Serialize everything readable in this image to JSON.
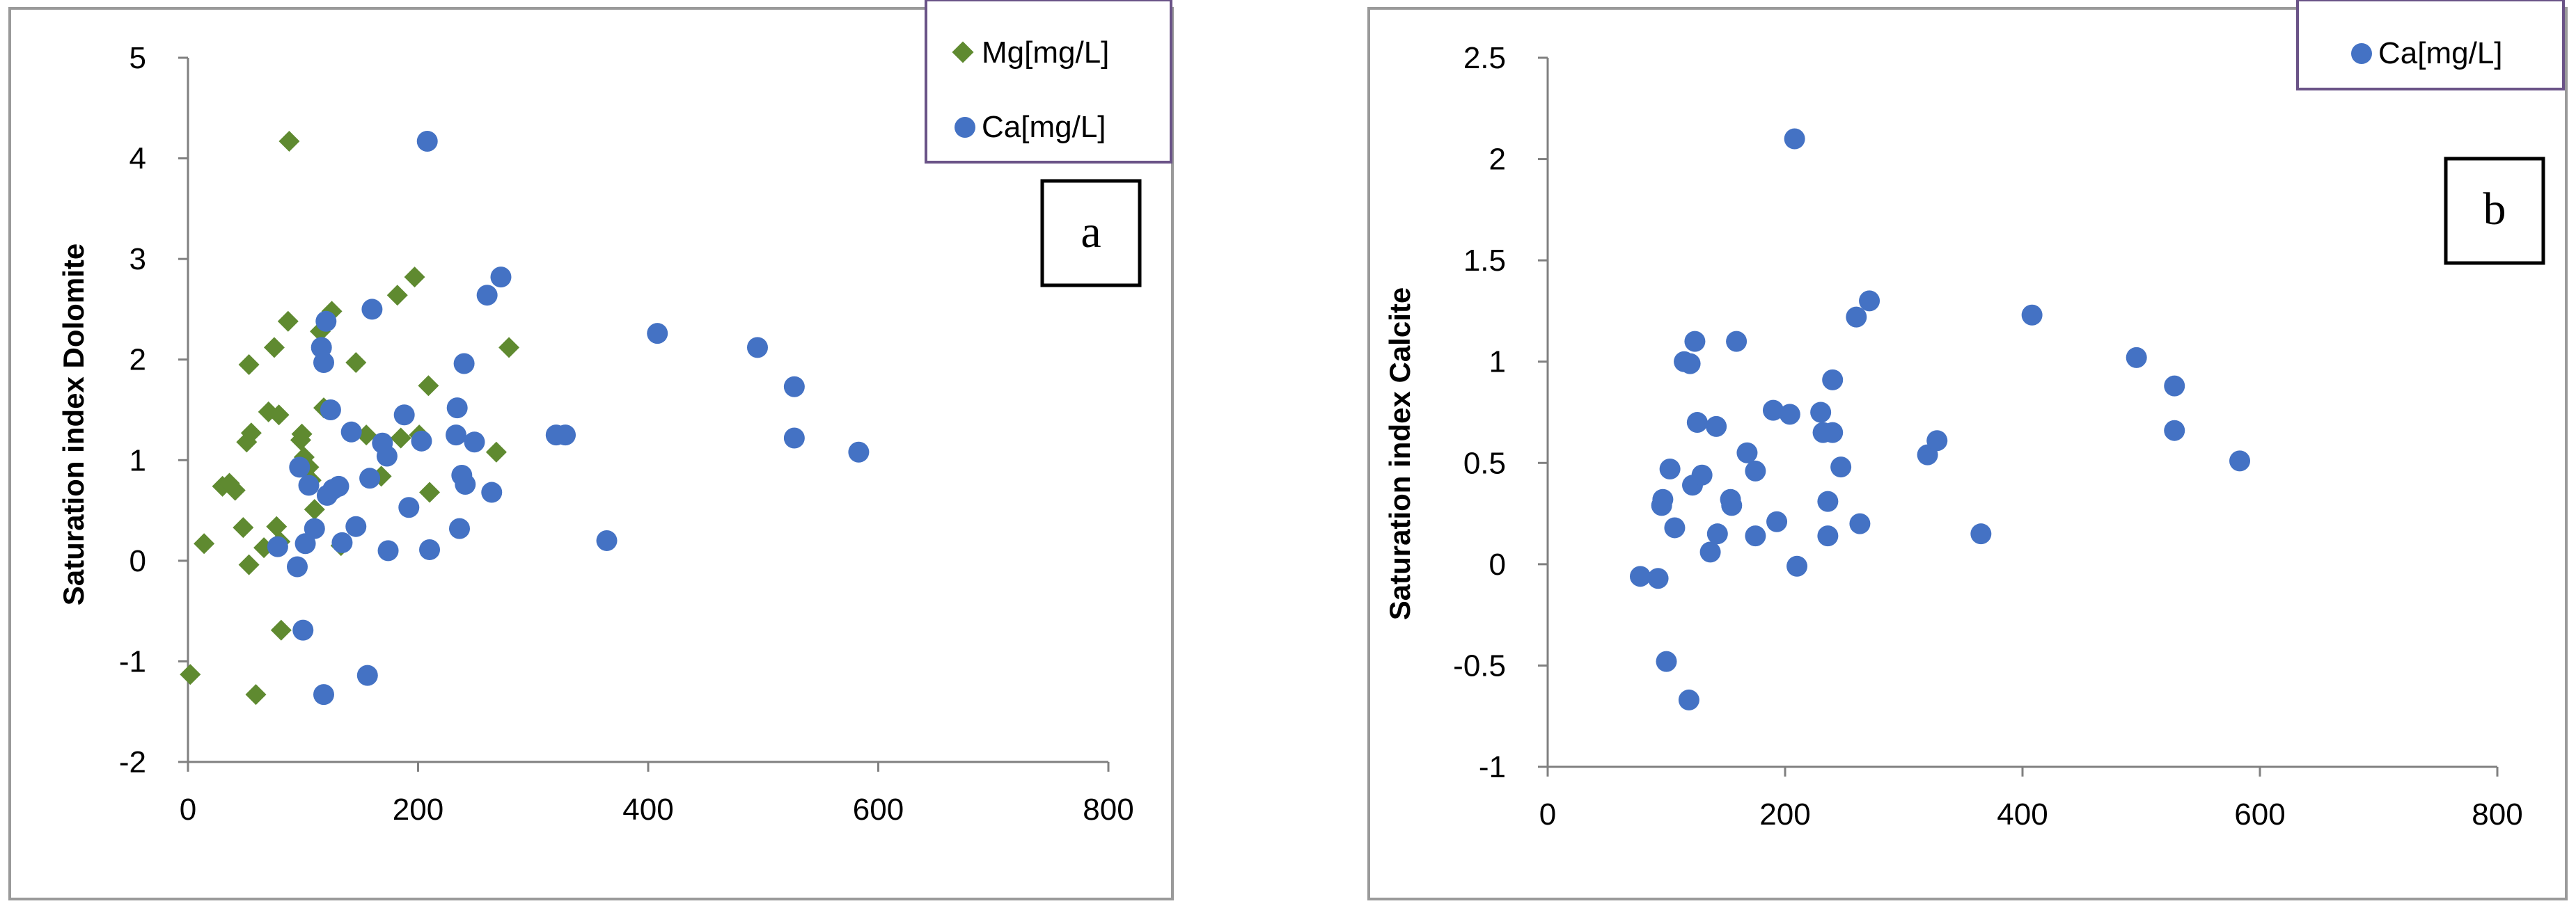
{
  "colors": {
    "mg": "#5f8a30",
    "ca": "#4472c4",
    "legend_border": "#6a5387",
    "frame": "#9a9a9a",
    "axis": "#808080"
  },
  "chart_data": [
    {
      "type": "scatter",
      "panel_label": "a",
      "title": "",
      "xlabel": "",
      "ylabel": "Saturation index Dolomite",
      "xlim": [
        0,
        800
      ],
      "ylim": [
        -2,
        5
      ],
      "xticks": [
        "0",
        "200",
        "400",
        "600",
        "800"
      ],
      "yticks": [
        "-2",
        "-1",
        "0",
        "1",
        "2",
        "3",
        "4",
        "5"
      ],
      "legend": [
        "Mg[mg/L]",
        "Ca[mg/L]"
      ],
      "series": [
        {
          "name": "Mg[mg/L]",
          "marker": "diamond",
          "color_key": "mg",
          "points": [
            [
              2,
              -1.13
            ],
            [
              14,
              0.17
            ],
            [
              30,
              0.74
            ],
            [
              36,
              0.77
            ],
            [
              41,
              0.7
            ],
            [
              48,
              0.33
            ],
            [
              51,
              1.18
            ],
            [
              53,
              1.95
            ],
            [
              55,
              1.27
            ],
            [
              53,
              -0.04
            ],
            [
              59,
              -1.33
            ],
            [
              66,
              0.13
            ],
            [
              70,
              1.48
            ],
            [
              77,
              0.34
            ],
            [
              75,
              2.12
            ],
            [
              79,
              1.45
            ],
            [
              80,
              0.19
            ],
            [
              81,
              -0.69
            ],
            [
              87,
              2.38
            ],
            [
              88,
              4.17
            ],
            [
              98,
              1.2
            ],
            [
              99,
              1.26
            ],
            [
              101,
              1.03
            ],
            [
              105,
              0.93
            ],
            [
              107,
              0.8
            ],
            [
              110,
              0.51
            ],
            [
              115,
              2.28
            ],
            [
              118,
              1.52
            ],
            [
              125,
              2.48
            ],
            [
              133,
              0.15
            ],
            [
              146,
              1.97
            ],
            [
              155,
              1.25
            ],
            [
              168,
              0.84
            ],
            [
              182,
              2.64
            ],
            [
              185,
              1.22
            ],
            [
              197,
              2.82
            ],
            [
              201,
              1.25
            ],
            [
              209,
              1.74
            ],
            [
              210,
              0.68
            ],
            [
              268,
              1.08
            ],
            [
              279,
              2.12
            ]
          ]
        },
        {
          "name": "Ca[mg/L]",
          "marker": "circle",
          "color_key": "ca",
          "points": [
            [
              78,
              0.14
            ],
            [
              95,
              -0.06
            ],
            [
              100,
              -0.69
            ],
            [
              97,
              0.93
            ],
            [
              105,
              0.75
            ],
            [
              110,
              0.32
            ],
            [
              102,
              0.17
            ],
            [
              116,
              2.12
            ],
            [
              118,
              1.97
            ],
            [
              120,
              2.38
            ],
            [
              118,
              -1.33
            ],
            [
              121,
              0.65
            ],
            [
              124,
              1.5
            ],
            [
              126,
              0.71
            ],
            [
              131,
              0.74
            ],
            [
              134,
              0.18
            ],
            [
              142,
              1.28
            ],
            [
              146,
              0.34
            ],
            [
              156,
              -1.14
            ],
            [
              158,
              0.82
            ],
            [
              160,
              2.5
            ],
            [
              169,
              1.17
            ],
            [
              173,
              1.04
            ],
            [
              174,
              0.1
            ],
            [
              188,
              1.45
            ],
            [
              192,
              0.53
            ],
            [
              203,
              1.19
            ],
            [
              208,
              4.17
            ],
            [
              210,
              0.11
            ],
            [
              234,
              1.52
            ],
            [
              233,
              1.25
            ],
            [
              236,
              0.32
            ],
            [
              238,
              0.85
            ],
            [
              241,
              0.76
            ],
            [
              240,
              1.96
            ],
            [
              249,
              1.18
            ],
            [
              260,
              2.64
            ],
            [
              264,
              0.68
            ],
            [
              272,
              2.82
            ],
            [
              320,
              1.25
            ],
            [
              328,
              1.25
            ],
            [
              364,
              0.2
            ],
            [
              408,
              2.26
            ],
            [
              495,
              2.12
            ],
            [
              527,
              1.73
            ],
            [
              527,
              1.22
            ],
            [
              583,
              1.08
            ]
          ]
        }
      ]
    },
    {
      "type": "scatter",
      "panel_label": "b",
      "title": "",
      "xlabel": "",
      "ylabel": "Saturation index Calcite",
      "xlim": [
        0,
        800
      ],
      "ylim": [
        -1,
        2.5
      ],
      "xticks": [
        "0",
        "200",
        "400",
        "600",
        "800"
      ],
      "yticks": [
        "-1",
        "-0.5",
        "0",
        "0.5",
        "1",
        "1.5",
        "2",
        "2.5"
      ],
      "legend": [
        "Ca[mg/L]"
      ],
      "series": [
        {
          "name": "Ca[mg/L]",
          "marker": "circle",
          "color_key": "ca",
          "points": [
            [
              78,
              -0.06
            ],
            [
              93,
              -0.07
            ],
            [
              96,
              0.29
            ],
            [
              97,
              0.32
            ],
            [
              100,
              -0.48
            ],
            [
              103,
              0.47
            ],
            [
              107,
              0.18
            ],
            [
              115,
              1.0
            ],
            [
              119,
              -0.67
            ],
            [
              120,
              0.99
            ],
            [
              122,
              0.39
            ],
            [
              124,
              1.1
            ],
            [
              126,
              0.7
            ],
            [
              130,
              0.44
            ],
            [
              137,
              0.06
            ],
            [
              142,
              0.68
            ],
            [
              143,
              0.15
            ],
            [
              154,
              0.32
            ],
            [
              155,
              0.29
            ],
            [
              159,
              1.1
            ],
            [
              168,
              0.55
            ],
            [
              175,
              0.46
            ],
            [
              175,
              0.14
            ],
            [
              190,
              0.76
            ],
            [
              193,
              0.21
            ],
            [
              204,
              0.74
            ],
            [
              208,
              2.1
            ],
            [
              210,
              -0.01
            ],
            [
              230,
              0.75
            ],
            [
              232,
              0.65
            ],
            [
              236,
              0.31
            ],
            [
              236,
              0.14
            ],
            [
              240,
              0.65
            ],
            [
              240,
              0.91
            ],
            [
              247,
              0.48
            ],
            [
              260,
              1.22
            ],
            [
              263,
              0.2
            ],
            [
              271,
              1.3
            ],
            [
              320,
              0.54
            ],
            [
              328,
              0.61
            ],
            [
              365,
              0.15
            ],
            [
              408,
              1.23
            ],
            [
              496,
              1.02
            ],
            [
              528,
              0.88
            ],
            [
              528,
              0.66
            ],
            [
              583,
              0.51
            ]
          ]
        }
      ]
    }
  ]
}
